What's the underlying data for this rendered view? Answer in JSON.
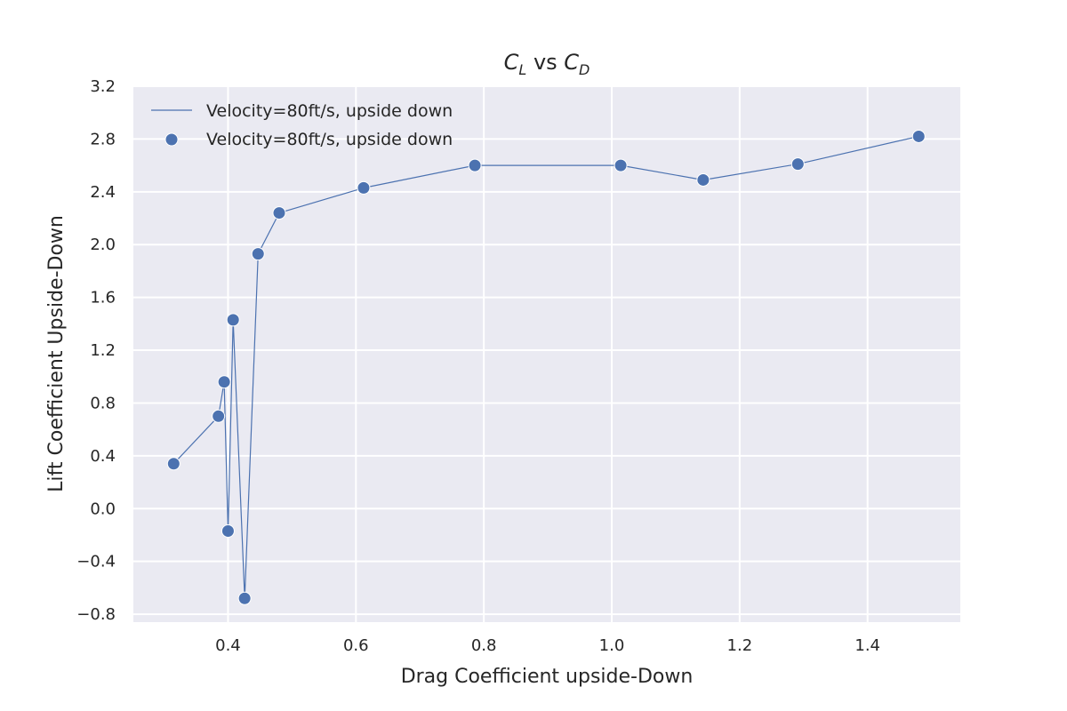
{
  "chart_data": {
    "type": "line",
    "title": {
      "main": "C",
      "main_sub": "L",
      "middle": " vs ",
      "second": "C",
      "second_sub": "D"
    },
    "xlabel": "Drag Coefficient upside-Down",
    "ylabel": "Lift Coefficient Upside-Down",
    "xlim": [
      0.252,
      1.545
    ],
    "ylim": [
      -0.86,
      3.2
    ],
    "xticks": [
      0.4,
      0.6,
      0.8,
      1.0,
      1.2,
      1.4
    ],
    "xtick_labels": [
      "0.4",
      "0.6",
      "0.8",
      "1.0",
      "1.2",
      "1.4"
    ],
    "yticks": [
      -0.8,
      -0.4,
      0.0,
      0.4,
      0.8,
      1.2,
      1.6,
      2.0,
      2.4,
      2.8,
      3.2
    ],
    "ytick_labels": [
      "−0.8",
      "−0.4",
      "0.0",
      "0.4",
      "0.8",
      "1.2",
      "1.6",
      "2.0",
      "2.4",
      "2.8",
      "3.2"
    ],
    "grid": true,
    "legend_position": "top-left",
    "colors": {
      "series": "#4c72b0",
      "background": "#eaeaf2",
      "grid": "#ffffff"
    },
    "series": [
      {
        "name": "Velocity=80ft/s, upside down",
        "style": "line",
        "x": [
          0.315,
          0.385,
          0.394,
          0.4,
          0.408,
          0.426,
          0.447,
          0.48,
          0.612,
          0.786,
          1.014,
          1.143,
          1.291,
          1.48
        ],
        "y": [
          0.34,
          0.7,
          0.96,
          -0.17,
          1.43,
          -0.68,
          1.93,
          2.24,
          2.43,
          2.6,
          2.6,
          2.49,
          2.61,
          2.82
        ]
      },
      {
        "name": "Velocity=80ft/s, upside down",
        "style": "scatter",
        "x": [
          0.315,
          0.385,
          0.394,
          0.4,
          0.408,
          0.426,
          0.447,
          0.48,
          0.612,
          0.786,
          1.014,
          1.143,
          1.291,
          1.48
        ],
        "y": [
          0.34,
          0.7,
          0.96,
          -0.17,
          1.43,
          -0.68,
          1.93,
          2.24,
          2.43,
          2.6,
          2.6,
          2.49,
          2.61,
          2.82
        ]
      }
    ]
  }
}
